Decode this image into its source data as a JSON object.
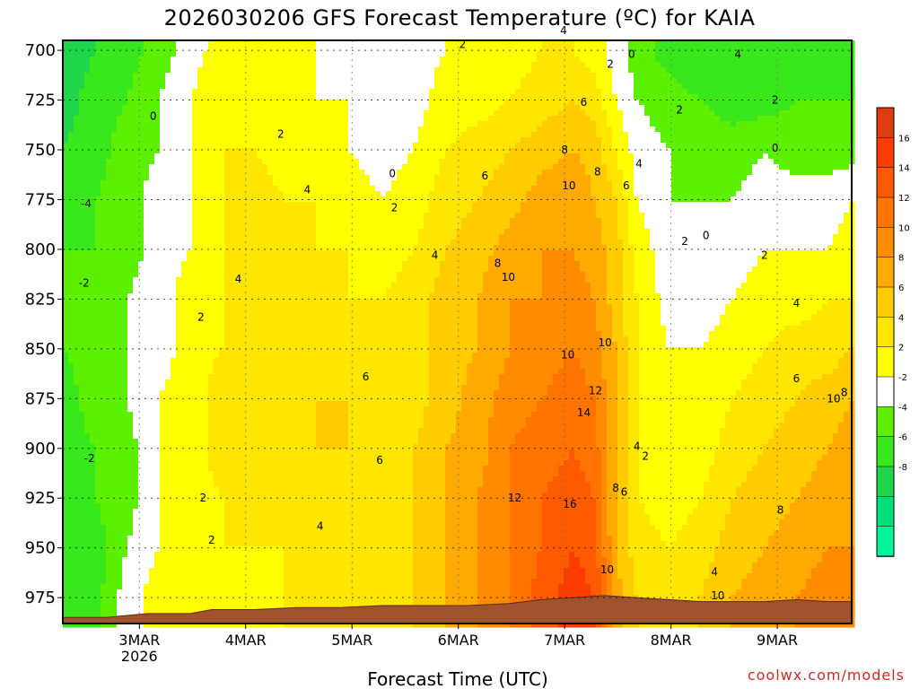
{
  "chart_data": {
    "type": "heatmap",
    "title": "2026030206 GFS Forecast Temperature (ºC) for KAIA",
    "xlabel": "Forecast Time (UTC)",
    "ylabel": "",
    "credit": "coolwx.com/models",
    "x_range_days": [
      0,
      7.42
    ],
    "y_range_hpa": [
      695,
      988
    ],
    "y_ticks": [
      700,
      725,
      750,
      775,
      800,
      825,
      850,
      875,
      900,
      925,
      950,
      975
    ],
    "x_ticks": [
      {
        "day": 0.72,
        "label": "3MAR",
        "sublabel": "2026"
      },
      {
        "day": 1.72,
        "label": "4MAR"
      },
      {
        "day": 2.72,
        "label": "5MAR"
      },
      {
        "day": 3.72,
        "label": "6MAR"
      },
      {
        "day": 4.72,
        "label": "7MAR"
      },
      {
        "day": 5.72,
        "label": "8MAR"
      },
      {
        "day": 6.72,
        "label": "9MAR"
      }
    ],
    "legend": {
      "levels": [
        -10,
        -8,
        -6,
        -4,
        -2,
        0,
        2,
        4,
        6,
        8,
        10,
        12,
        14,
        16,
        18
      ],
      "labels": [
        "16",
        "14",
        "12",
        "10",
        "8",
        "6",
        "4",
        "2",
        "-2",
        "-4",
        "-6",
        "-8"
      ],
      "colors": [
        "#00f59a",
        "#00e07a",
        "#1fd64a",
        "#39e81c",
        "#5cf000",
        "#ffffff",
        "#ffff00",
        "#ffe600",
        "#ffcc00",
        "#ffaa00",
        "#ff8c00",
        "#ff7400",
        "#ff5a00",
        "#ff3c00",
        "#e03a10"
      ]
    },
    "temperature_field": {
      "days": [
        0.0,
        0.3,
        0.6,
        0.9,
        1.2,
        1.5,
        1.8,
        2.1,
        2.4,
        2.7,
        3.0,
        3.3,
        3.6,
        3.9,
        4.2,
        4.5,
        4.8,
        5.0,
        5.2,
        5.4,
        5.7,
        6.0,
        6.3,
        6.6,
        6.9,
        7.2,
        7.42
      ],
      "levels": [
        700,
        725,
        750,
        775,
        800,
        825,
        850,
        875,
        900,
        925,
        950,
        975,
        988
      ],
      "values": [
        [
          -6,
          -4,
          -3,
          -1,
          1,
          3,
          3,
          3,
          2,
          1,
          1,
          1,
          2,
          2,
          3,
          4,
          4,
          3,
          1,
          -1,
          -3,
          -4,
          -4,
          -4,
          -3,
          -3,
          -3
        ],
        [
          -5,
          -3,
          -2,
          0,
          2,
          4,
          3,
          3,
          2,
          2,
          1,
          1,
          3,
          3,
          4,
          5,
          6,
          5,
          2,
          0,
          -1,
          -2,
          -3,
          -3,
          -2,
          -2,
          -2
        ],
        [
          -4,
          -3,
          -1,
          0,
          2,
          4,
          4,
          3,
          3,
          2,
          1,
          2,
          4,
          5,
          6,
          7,
          8,
          7,
          4,
          1,
          0,
          -1,
          -1,
          0,
          -1,
          -1,
          -1
        ],
        [
          -3,
          -2,
          -1,
          1,
          2,
          4,
          5,
          4,
          4,
          3,
          2,
          3,
          5,
          6,
          7,
          9,
          10,
          8,
          6,
          2,
          0,
          0,
          0,
          1,
          1,
          1,
          2
        ],
        [
          -2,
          -2,
          -1,
          1,
          2,
          4,
          5,
          5,
          4,
          4,
          3,
          4,
          6,
          7,
          9,
          10,
          10,
          9,
          7,
          3,
          1,
          0,
          1,
          2,
          2,
          2,
          3
        ],
        [
          -2,
          -1,
          0,
          1,
          3,
          4,
          5,
          5,
          5,
          4,
          4,
          5,
          7,
          8,
          10,
          10,
          11,
          10,
          7,
          4,
          1,
          1,
          2,
          3,
          3,
          4,
          4
        ],
        [
          -2,
          -1,
          0,
          1,
          3,
          4,
          5,
          5,
          5,
          5,
          5,
          5,
          7,
          8,
          10,
          11,
          12,
          11,
          8,
          4,
          2,
          2,
          3,
          4,
          5,
          5,
          6
        ],
        [
          -3,
          -1,
          0,
          2,
          3,
          5,
          5,
          5,
          6,
          6,
          5,
          5,
          7,
          9,
          11,
          12,
          13,
          12,
          8,
          4,
          2,
          2,
          4,
          5,
          6,
          7,
          8
        ],
        [
          -3,
          -2,
          -1,
          2,
          3,
          5,
          5,
          5,
          6,
          6,
          5,
          6,
          8,
          9,
          12,
          13,
          14,
          13,
          8,
          4,
          2,
          3,
          5,
          6,
          7,
          8,
          9
        ],
        [
          -4,
          -2,
          -1,
          2,
          3,
          4,
          4,
          5,
          5,
          5,
          5,
          6,
          8,
          10,
          12,
          14,
          15,
          14,
          8,
          4,
          3,
          4,
          6,
          7,
          8,
          9,
          9
        ],
        [
          -4,
          -3,
          0,
          2,
          3,
          4,
          4,
          4,
          4,
          4,
          5,
          6,
          8,
          10,
          12,
          14,
          16,
          15,
          8,
          5,
          4,
          5,
          7,
          8,
          9,
          10,
          10
        ],
        [
          -4,
          -3,
          1,
          3,
          3,
          3,
          3,
          4,
          4,
          4,
          5,
          6,
          8,
          10,
          12,
          15,
          17,
          16,
          9,
          6,
          5,
          6,
          8,
          9,
          10,
          11,
          11
        ],
        [
          -4,
          -3,
          1,
          3,
          3,
          3,
          3,
          4,
          4,
          4,
          5,
          6,
          8,
          10,
          12,
          15,
          17,
          16,
          9,
          6,
          5,
          6,
          8,
          9,
          10,
          11,
          11
        ]
      ]
    },
    "terrain_surface": {
      "color": "#a0522d",
      "days": [
        0.0,
        0.4,
        0.8,
        1.2,
        1.4,
        1.8,
        2.2,
        2.6,
        3.0,
        3.4,
        3.8,
        4.2,
        4.5,
        4.8,
        5.1,
        5.4,
        5.7,
        6.0,
        6.3,
        6.6,
        6.9,
        7.2,
        7.42
      ],
      "pressure_hpa": [
        985,
        985,
        983,
        983,
        981,
        981,
        980,
        980,
        979,
        979,
        979,
        978,
        976,
        975,
        974,
        975,
        976,
        977,
        977,
        977,
        976,
        977,
        977
      ]
    },
    "contour_labels": [
      {
        "day": 0.22,
        "p": 777,
        "text": "-4"
      },
      {
        "day": 0.2,
        "p": 817,
        "text": "-2"
      },
      {
        "day": 0.25,
        "p": 905,
        "text": "-2"
      },
      {
        "day": 0.85,
        "p": 733,
        "text": "0"
      },
      {
        "day": 1.3,
        "p": 834,
        "text": "2"
      },
      {
        "day": 1.32,
        "p": 925,
        "text": "2"
      },
      {
        "day": 1.4,
        "p": 946,
        "text": "2"
      },
      {
        "day": 1.65,
        "p": 815,
        "text": "4"
      },
      {
        "day": 2.05,
        "p": 742,
        "text": "2"
      },
      {
        "day": 2.3,
        "p": 770,
        "text": "4"
      },
      {
        "day": 2.42,
        "p": 939,
        "text": "4"
      },
      {
        "day": 2.85,
        "p": 864,
        "text": "6"
      },
      {
        "day": 2.98,
        "p": 906,
        "text": "6"
      },
      {
        "day": 3.1,
        "p": 762,
        "text": "0"
      },
      {
        "day": 3.12,
        "p": 779,
        "text": "2"
      },
      {
        "day": 3.5,
        "p": 803,
        "text": "4"
      },
      {
        "day": 3.76,
        "p": 697,
        "text": "2"
      },
      {
        "day": 3.97,
        "p": 763,
        "text": "6"
      },
      {
        "day": 4.09,
        "p": 807,
        "text": "8"
      },
      {
        "day": 4.19,
        "p": 814,
        "text": "10"
      },
      {
        "day": 4.25,
        "p": 925,
        "text": "12"
      },
      {
        "day": 4.71,
        "p": 690,
        "text": "4"
      },
      {
        "day": 4.72,
        "p": 750,
        "text": "8"
      },
      {
        "day": 4.75,
        "p": 853,
        "text": "10"
      },
      {
        "day": 4.76,
        "p": 768,
        "text": "10"
      },
      {
        "day": 4.77,
        "p": 928,
        "text": "16"
      },
      {
        "day": 4.9,
        "p": 726,
        "text": "6"
      },
      {
        "day": 4.9,
        "p": 882,
        "text": "14"
      },
      {
        "day": 5.03,
        "p": 761,
        "text": "8"
      },
      {
        "day": 5.01,
        "p": 871,
        "text": "12"
      },
      {
        "day": 5.1,
        "p": 847,
        "text": "10"
      },
      {
        "day": 5.12,
        "p": 961,
        "text": "10"
      },
      {
        "day": 5.15,
        "p": 707,
        "text": "2"
      },
      {
        "day": 5.2,
        "p": 920,
        "text": "8"
      },
      {
        "day": 5.28,
        "p": 922,
        "text": "6"
      },
      {
        "day": 5.3,
        "p": 768,
        "text": "6"
      },
      {
        "day": 5.35,
        "p": 702,
        "text": "0"
      },
      {
        "day": 5.4,
        "p": 899,
        "text": "4"
      },
      {
        "day": 5.42,
        "p": 757,
        "text": "4"
      },
      {
        "day": 5.48,
        "p": 904,
        "text": "2"
      },
      {
        "day": 5.8,
        "p": 730,
        "text": "2"
      },
      {
        "day": 5.85,
        "p": 796,
        "text": "2"
      },
      {
        "day": 6.05,
        "p": 793,
        "text": "0"
      },
      {
        "day": 6.13,
        "p": 962,
        "text": "4"
      },
      {
        "day": 6.16,
        "p": 974,
        "text": "10"
      },
      {
        "day": 6.35,
        "p": 702,
        "text": "4"
      },
      {
        "day": 6.6,
        "p": 803,
        "text": "2"
      },
      {
        "day": 6.7,
        "p": 725,
        "text": "2"
      },
      {
        "day": 6.7,
        "p": 749,
        "text": "0"
      },
      {
        "day": 6.75,
        "p": 931,
        "text": "8"
      },
      {
        "day": 6.9,
        "p": 827,
        "text": "4"
      },
      {
        "day": 6.9,
        "p": 865,
        "text": "6"
      },
      {
        "day": 7.25,
        "p": 875,
        "text": "10"
      },
      {
        "day": 7.35,
        "p": 872,
        "text": "8"
      }
    ]
  }
}
